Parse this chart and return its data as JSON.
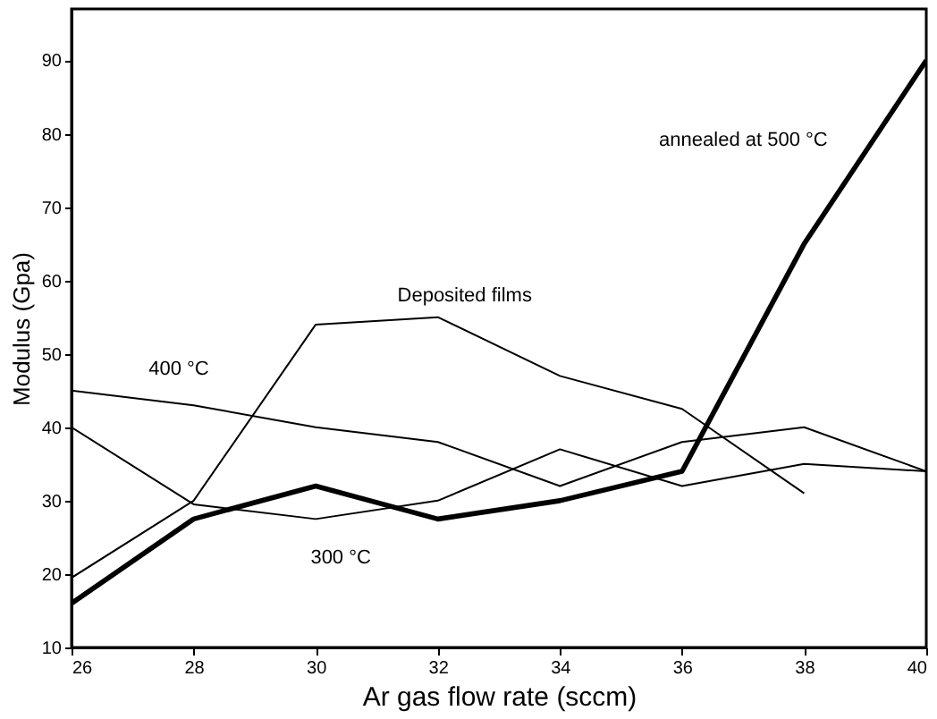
{
  "chart_data": {
    "type": "line",
    "xlabel": "Ar gas flow rate (sccm)",
    "ylabel": "Modulus (Gpa)",
    "x": [
      26,
      28,
      30,
      32,
      34,
      36,
      38,
      40
    ],
    "series": [
      {
        "name": "annealed at 500 °C",
        "color": "#000000",
        "values": [
          16,
          27.5,
          32,
          27.5,
          30,
          34,
          65,
          90
        ]
      },
      {
        "name": "Deposited films",
        "color": "#000000",
        "values": [
          19.5,
          30,
          54,
          55,
          47,
          42.5,
          31,
          null
        ]
      },
      {
        "name": "400 °C",
        "color": "#000000",
        "values": [
          45,
          43,
          40,
          38,
          32,
          38,
          40,
          34
        ]
      },
      {
        "name": "300 °C",
        "color": "#000000",
        "values": [
          40,
          29.5,
          27.5,
          30,
          37,
          32,
          35,
          34
        ]
      }
    ],
    "xlim": [
      26,
      40
    ],
    "xticks": [
      26,
      28,
      30,
      32,
      34,
      36,
      38,
      40
    ],
    "ylim": [
      10,
      97
    ],
    "yticks": [
      10,
      20,
      30,
      40,
      50,
      60,
      70,
      80,
      90
    ],
    "grid": false,
    "marker": "none",
    "line_style": "solid"
  }
}
